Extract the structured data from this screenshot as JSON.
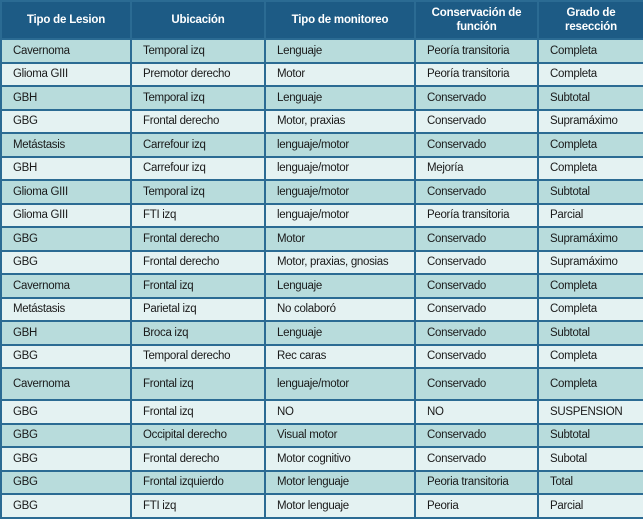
{
  "table": {
    "headers": [
      "Tipo de Lesion",
      "Ubicación",
      "Tipo de monitoreo",
      "Conservación de función",
      "Grado de resección"
    ],
    "rows": [
      [
        "Cavernoma",
        "Temporal izq",
        "Lenguaje",
        "Peoría transitoria",
        "Completa"
      ],
      [
        "Glioma GIII",
        "Premotor derecho",
        "Motor",
        "Peoría transitoria",
        "Completa"
      ],
      [
        "GBH",
        "Temporal izq",
        "Lenguaje",
        "Conservado",
        "Subtotal"
      ],
      [
        "GBG",
        "Frontal derecho",
        "Motor, praxias",
        "Conservado",
        "Supramáximo"
      ],
      [
        "Metástasis",
        "Carrefour izq",
        "lenguaje/motor",
        "Conservado",
        "Completa"
      ],
      [
        "GBH",
        "Carrefour izq",
        "lenguaje/motor",
        "Mejoría",
        "Completa"
      ],
      [
        "Glioma GIII",
        "Temporal izq",
        "lenguaje/motor",
        "Conservado",
        "Subtotal"
      ],
      [
        "Glioma GIII",
        "FTI izq",
        "lenguaje/motor",
        "Peoría transitoria",
        "Parcial"
      ],
      [
        "GBG",
        "Frontal derecho",
        "Motor",
        "Conservado",
        "Supramáximo"
      ],
      [
        "GBG",
        "Frontal derecho",
        "Motor, praxias, gnosias",
        "Conservado",
        "Supramáximo"
      ],
      [
        "Cavernoma",
        "Frontal izq",
        "Lenguaje",
        "Conservado",
        "Completa"
      ],
      [
        "Metástasis",
        "Parietal izq",
        "No colaboró",
        "Conservado",
        "Completa"
      ],
      [
        "GBH",
        "Broca izq",
        "Lenguaje",
        "Conservado",
        "Subtotal"
      ],
      [
        "GBG",
        "Temporal derecho",
        "Rec caras",
        "Conservado",
        "Completa"
      ],
      [
        "Cavernoma",
        "Frontal izq",
        "lenguaje/motor",
        "Conservado",
        "Completa"
      ],
      [
        "GBG",
        "Frontal izq",
        "NO",
        "NO",
        "SUSPENSION"
      ],
      [
        "GBG",
        "Occipital derecho",
        "Visual motor",
        "Conservado",
        "Subtotal"
      ],
      [
        "GBG",
        "Frontal derecho",
        "Motor cognitivo",
        "Conservado",
        "Subotal"
      ],
      [
        "GBG",
        "Frontal izquierdo",
        "Motor lenguaje",
        "Peoria transitoria",
        "Total"
      ],
      [
        "GBG",
        "FTI izq",
        "Motor lenguaje",
        "Peoria",
        "Parcial"
      ]
    ]
  },
  "colors": {
    "header_bg": "#1d5b85",
    "row_odd": "#b8dcdc",
    "row_even": "#e4f2f2",
    "border": "#2b6b93"
  }
}
